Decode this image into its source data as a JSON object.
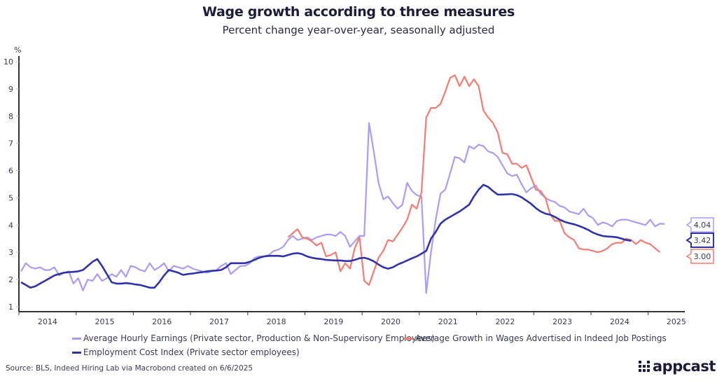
{
  "header": {
    "title": "Wage growth according to three measures",
    "subtitle": "Percent change year-over-year, seasonally adjusted"
  },
  "footer": {
    "source": "Source: BLS, Indeed Hiring Lab via Macrobond created on 6/6/2025",
    "logo_text": "appcast"
  },
  "chart_data": {
    "type": "line",
    "title": "Wage growth according to three measures",
    "subtitle": "Percent change year-over-year, seasonally adjusted",
    "ylabel": "%",
    "xlabel": "",
    "ylim": [
      1,
      10
    ],
    "yticks": [
      1,
      2,
      3,
      4,
      5,
      6,
      7,
      8,
      9,
      10
    ],
    "xticks": [
      "2014",
      "2015",
      "2016",
      "2017",
      "2018",
      "2019",
      "2020",
      "2021",
      "2022",
      "2023",
      "2024",
      "2025"
    ],
    "xrange": [
      "2014-01",
      "2025-08"
    ],
    "grid": false,
    "legend_position": "bottom",
    "series": [
      {
        "name": "Average Hourly Earnings (Private sector, Production & Non-Supervisory Employees)",
        "color": "#a99cf7",
        "end_label": "4.04",
        "start": "2014-01",
        "values": [
          2.3,
          2.6,
          2.45,
          2.4,
          2.45,
          2.35,
          2.35,
          2.45,
          2.15,
          2.25,
          2.3,
          1.85,
          2.05,
          1.6,
          2.0,
          1.95,
          2.2,
          1.95,
          2.05,
          2.2,
          2.1,
          2.35,
          2.1,
          2.5,
          2.45,
          2.35,
          2.3,
          2.6,
          2.35,
          2.45,
          2.6,
          2.3,
          2.5,
          2.45,
          2.4,
          2.5,
          2.4,
          2.35,
          2.3,
          2.25,
          2.3,
          2.35,
          2.5,
          2.6,
          2.2,
          2.35,
          2.5,
          2.5,
          2.6,
          2.8,
          2.85,
          2.85,
          2.9,
          3.05,
          3.1,
          3.2,
          3.45,
          3.6,
          3.45,
          3.5,
          3.55,
          3.45,
          3.55,
          3.6,
          3.65,
          3.65,
          3.6,
          3.75,
          3.6,
          3.2,
          3.4,
          3.6,
          3.6,
          7.75,
          6.7,
          5.55,
          4.95,
          5.05,
          4.8,
          4.6,
          4.75,
          5.55,
          5.25,
          5.1,
          5.05,
          1.5,
          3.0,
          4.2,
          5.15,
          5.3,
          5.9,
          6.5,
          6.45,
          6.3,
          6.9,
          6.8,
          6.95,
          6.9,
          6.7,
          6.65,
          6.5,
          6.2,
          5.9,
          5.8,
          5.85,
          5.5,
          5.2,
          5.35,
          5.45,
          5.15,
          5.0,
          4.9,
          4.85,
          4.7,
          4.65,
          4.5,
          4.45,
          4.4,
          4.6,
          4.35,
          4.25,
          4.0,
          4.1,
          4.05,
          3.95,
          4.15,
          4.2,
          4.2,
          4.15,
          4.1,
          4.05,
          4.0,
          4.2,
          3.95,
          4.05,
          4.04
        ]
      },
      {
        "name": "Average Growth in Wages Advertised in Indeed Job Postings",
        "color": "#f47c70",
        "end_label": "3.00",
        "start": "2018-09",
        "values": [
          3.55,
          3.7,
          3.85,
          3.55,
          3.5,
          3.4,
          3.25,
          3.35,
          2.85,
          2.9,
          3.0,
          2.3,
          2.6,
          2.4,
          3.15,
          3.55,
          1.95,
          1.8,
          2.3,
          2.8,
          3.05,
          3.45,
          3.4,
          3.65,
          3.9,
          4.2,
          4.75,
          4.6,
          5.2,
          7.95,
          8.3,
          8.3,
          8.45,
          8.9,
          9.4,
          9.5,
          9.1,
          9.45,
          9.1,
          9.35,
          9.1,
          8.2,
          7.95,
          7.75,
          7.4,
          6.65,
          6.6,
          6.25,
          6.25,
          6.1,
          6.2,
          5.75,
          5.3,
          5.25,
          5.0,
          4.4,
          4.15,
          4.15,
          3.7,
          3.55,
          3.45,
          3.15,
          3.1,
          3.1,
          3.05,
          3.0,
          3.05,
          3.15,
          3.3,
          3.35,
          3.35,
          3.5,
          3.45,
          3.3,
          3.45,
          3.35,
          3.3,
          3.15,
          3.0
        ]
      },
      {
        "name": "Employment Cost Index (Private sector employees)",
        "color": "#2e33a8",
        "end_label": "3.42",
        "start": "2014-01",
        "values": [
          1.9,
          1.8,
          1.7,
          1.75,
          1.85,
          1.95,
          2.05,
          2.15,
          2.2,
          2.25,
          2.27,
          2.28,
          2.3,
          2.35,
          2.5,
          2.65,
          2.75,
          2.5,
          2.2,
          1.9,
          1.85,
          1.85,
          1.87,
          1.85,
          1.82,
          1.8,
          1.75,
          1.7,
          1.7,
          1.9,
          2.15,
          2.35,
          2.3,
          2.25,
          2.17,
          2.2,
          2.22,
          2.25,
          2.27,
          2.3,
          2.32,
          2.33,
          2.35,
          2.45,
          2.6,
          2.6,
          2.6,
          2.6,
          2.65,
          2.72,
          2.8,
          2.85,
          2.87,
          2.87,
          2.87,
          2.85,
          2.9,
          2.95,
          2.97,
          2.93,
          2.85,
          2.8,
          2.77,
          2.75,
          2.72,
          2.71,
          2.7,
          2.7,
          2.68,
          2.68,
          2.72,
          2.78,
          2.8,
          2.75,
          2.67,
          2.55,
          2.45,
          2.4,
          2.45,
          2.55,
          2.62,
          2.7,
          2.78,
          2.85,
          2.95,
          3.05,
          3.5,
          3.75,
          4.05,
          4.2,
          4.3,
          4.4,
          4.5,
          4.62,
          4.75,
          5.05,
          5.3,
          5.48,
          5.4,
          5.25,
          5.12,
          5.12,
          5.13,
          5.14,
          5.1,
          5.02,
          4.9,
          4.78,
          4.62,
          4.5,
          4.42,
          4.38,
          4.3,
          4.2,
          4.12,
          4.07,
          4.03,
          3.97,
          3.9,
          3.82,
          3.72,
          3.65,
          3.6,
          3.58,
          3.57,
          3.55,
          3.5,
          3.45,
          3.42
        ]
      }
    ]
  }
}
